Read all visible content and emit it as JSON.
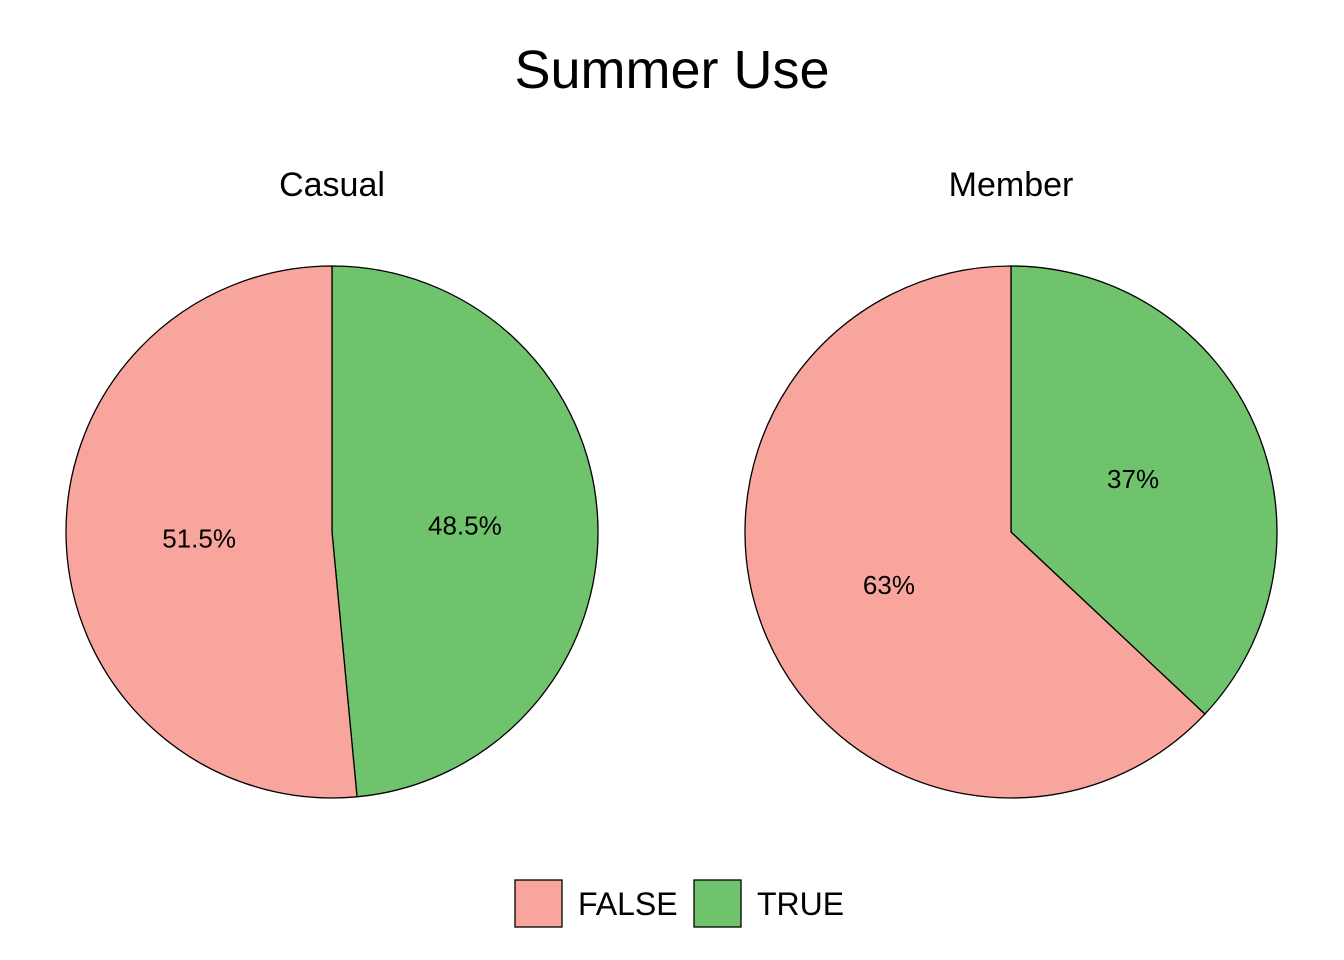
{
  "chart_data": {
    "type": "pie",
    "title": "Summer Use",
    "legend": {
      "placement": "bottom",
      "entries": [
        {
          "label": "FALSE",
          "color": "#F8A59E"
        },
        {
          "label": "TRUE",
          "color": "#70C36D"
        }
      ]
    },
    "panels": [
      {
        "title": "Casual",
        "slices": [
          {
            "category": "TRUE",
            "value": 48.5,
            "label": "48.5%",
            "color": "#70C36D"
          },
          {
            "category": "FALSE",
            "value": 51.5,
            "label": "51.5%",
            "color": "#F8A59E"
          }
        ]
      },
      {
        "title": "Member",
        "slices": [
          {
            "category": "TRUE",
            "value": 37,
            "label": "37%",
            "color": "#70C36D"
          },
          {
            "category": "FALSE",
            "value": 63,
            "label": "63%",
            "color": "#F8A59E"
          }
        ]
      }
    ]
  }
}
